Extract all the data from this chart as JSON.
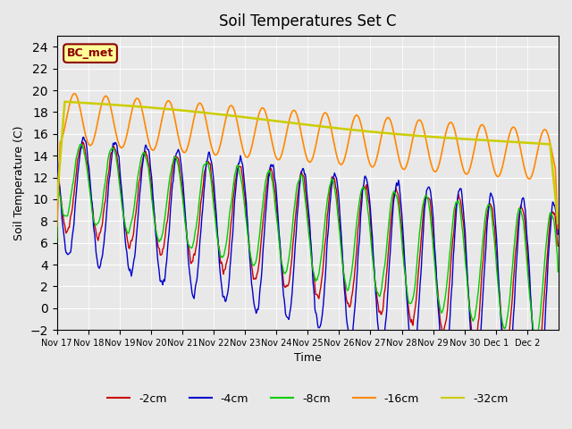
{
  "title": "Soil Temperatures Set C",
  "xlabel": "Time",
  "ylabel": "Soil Temperature (C)",
  "ylim": [
    -2,
    25
  ],
  "yticks": [
    -2,
    0,
    2,
    4,
    6,
    8,
    10,
    12,
    14,
    16,
    18,
    20,
    22,
    24
  ],
  "bg_color": "#e8e8e8",
  "annotation_label": "BC_met",
  "annotation_bg": "#ffff99",
  "annotation_border": "#8b0000",
  "colors": {
    "-2cm": "#cc0000",
    "-4cm": "#0000cc",
    "-8cm": "#00cc00",
    "-16cm": "#ff8800",
    "-32cm": "#cccc00"
  },
  "legend_entries": [
    "-2cm",
    "-4cm",
    "-8cm",
    "-16cm",
    "-32cm"
  ],
  "x_tick_labels": [
    "Nov 17",
    "Nov 18",
    "Nov 19",
    "Nov 20",
    "Nov 21",
    "Nov 22",
    "Nov 23",
    "Nov 24",
    "Nov 25",
    "Nov 26",
    "Nov 27",
    "Nov 28",
    "Nov 29",
    "Nov 30",
    "Dec 1",
    "Dec 2"
  ],
  "n_points_per_day": 48
}
